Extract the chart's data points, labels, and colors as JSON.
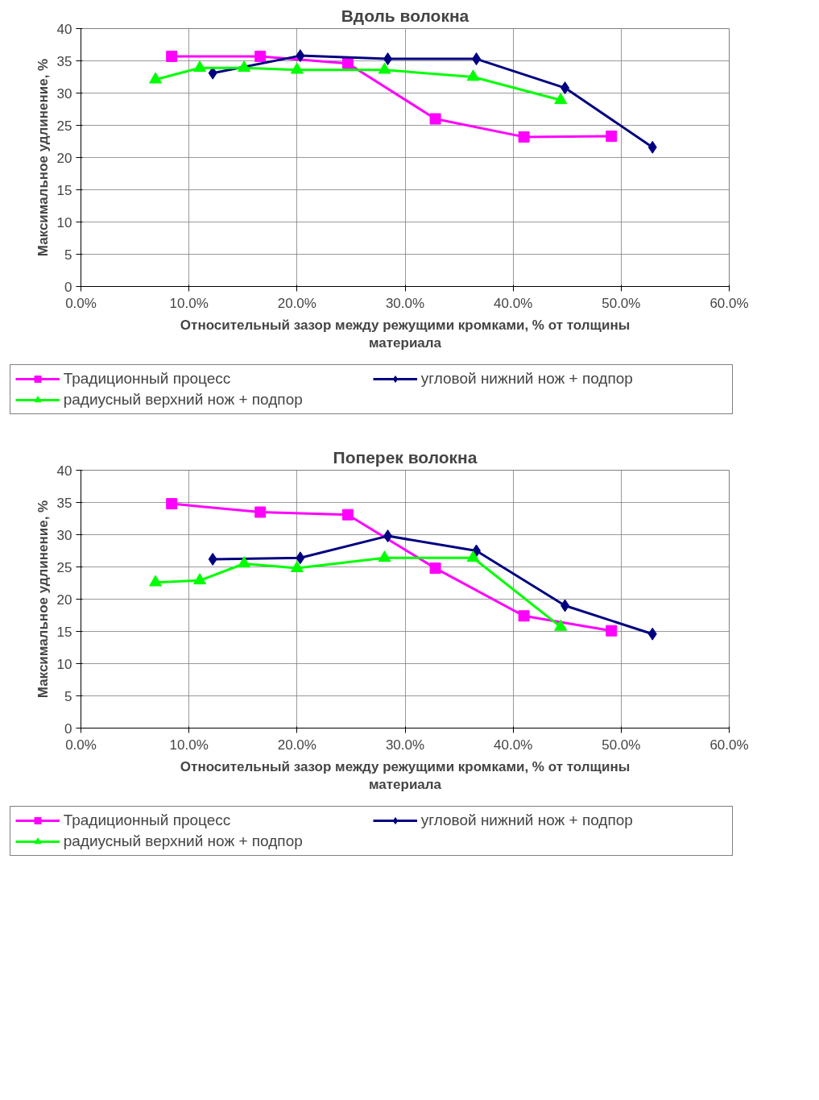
{
  "chart_data": [
    {
      "type": "line",
      "title": "Вдоль волокна",
      "xlabel": "Относительный зазор между режущими кромками, % от толщины материала",
      "ylabel": "Максимальное удлинение, %",
      "xlim": [
        0,
        60
      ],
      "xticks": [
        {
          "value": 0,
          "label": "0.0%"
        },
        {
          "value": 10,
          "label": "10.0%"
        },
        {
          "value": 20,
          "label": "20.0%"
        },
        {
          "value": 30,
          "label": "30.0%"
        },
        {
          "value": 40,
          "label": "40.0%"
        },
        {
          "value": 50,
          "label": "50.0%"
        },
        {
          "value": 60,
          "label": "60.0%"
        }
      ],
      "ylim": [
        0,
        40
      ],
      "yticks": [
        0,
        5,
        10,
        15,
        20,
        25,
        30,
        35,
        40
      ],
      "grid": true,
      "legend": "bottom",
      "series": [
        {
          "name": "Традиционный процесс",
          "color": "#ff00ff",
          "marker": "square",
          "x": [
            8.4,
            16.6,
            24.7,
            32.8,
            41.0,
            49.1
          ],
          "values": [
            35.7,
            35.7,
            34.6,
            26.0,
            23.2,
            23.3
          ]
        },
        {
          "name": "угловой нижний нож + подпор",
          "color": "#000080",
          "marker": "diamond",
          "x": [
            12.2,
            20.3,
            28.4,
            36.6,
            44.8,
            52.9
          ],
          "values": [
            33.1,
            35.8,
            35.3,
            35.3,
            30.8,
            21.6
          ]
        },
        {
          "name": "радиусный верхний нож + подпор",
          "color": "#00ff00",
          "marker": "triangle",
          "x": [
            6.9,
            11.0,
            15.1,
            20.0,
            28.1,
            36.3,
            44.4
          ],
          "values": [
            32.1,
            33.9,
            33.9,
            33.6,
            33.6,
            32.5,
            28.9
          ]
        }
      ]
    },
    {
      "type": "line",
      "title": "Поперек волокна",
      "xlabel": "Относительный зазор между режущими кромками, % от толщины материала",
      "ylabel": "Максимальное удлинение, %",
      "xlim": [
        0,
        60
      ],
      "xticks": [
        {
          "value": 0,
          "label": "0.0%"
        },
        {
          "value": 10,
          "label": "10.0%"
        },
        {
          "value": 20,
          "label": "20.0%"
        },
        {
          "value": 30,
          "label": "30.0%"
        },
        {
          "value": 40,
          "label": "40.0%"
        },
        {
          "value": 50,
          "label": "50.0%"
        },
        {
          "value": 60,
          "label": "60.0%"
        }
      ],
      "ylim": [
        0,
        40
      ],
      "yticks": [
        0,
        5,
        10,
        15,
        20,
        25,
        30,
        35,
        40
      ],
      "grid": true,
      "legend": "bottom",
      "series": [
        {
          "name": "Традиционный процесс",
          "color": "#ff00ff",
          "marker": "square",
          "x": [
            8.4,
            16.6,
            24.7,
            32.8,
            41.0,
            49.1
          ],
          "values": [
            34.8,
            33.5,
            33.1,
            24.8,
            17.4,
            15.1
          ]
        },
        {
          "name": "угловой нижний нож + подпор",
          "color": "#000080",
          "marker": "diamond",
          "x": [
            12.2,
            20.3,
            28.4,
            36.6,
            44.8,
            52.9
          ],
          "values": [
            26.2,
            26.4,
            29.8,
            27.5,
            19.0,
            14.6
          ]
        },
        {
          "name": "радиусный верхний нож + подпор",
          "color": "#00ff00",
          "marker": "triangle",
          "x": [
            6.9,
            11.0,
            15.1,
            20.0,
            28.1,
            36.3,
            44.4
          ],
          "values": [
            22.6,
            22.9,
            25.5,
            24.8,
            26.4,
            26.4,
            15.7
          ]
        }
      ]
    }
  ]
}
